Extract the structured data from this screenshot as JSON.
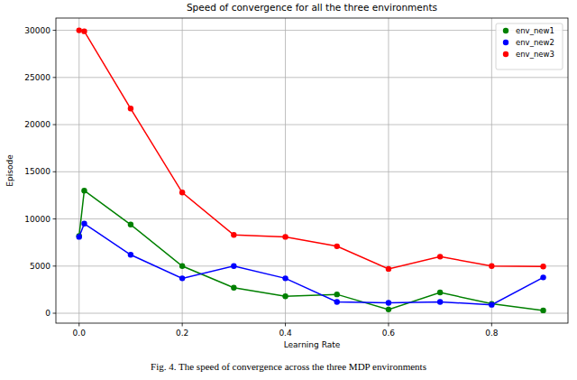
{
  "chart_data": {
    "type": "line",
    "title": "Speed of convergence for all the three environments",
    "x_label": "Learning Rate",
    "y_label": "Episode",
    "caption": "Fig. 4. The speed of convergence across the three MDP environments",
    "x": [
      0,
      0.01,
      0.1,
      0.2,
      0.3,
      0.4,
      0.5,
      0.6,
      0.7,
      0.8,
      0.9
    ],
    "series": [
      {
        "name": "env_new1",
        "color": "#008000",
        "values": [
          8200,
          13000,
          9400,
          5000,
          2700,
          1800,
          2000,
          400,
          2200,
          1000,
          300
        ]
      },
      {
        "name": "env_new2",
        "color": "#0000ff",
        "values": [
          8100,
          9500,
          6200,
          3700,
          5000,
          3700,
          1200,
          1100,
          1200,
          900,
          3800
        ]
      },
      {
        "name": "env_new3",
        "color": "#ff0000",
        "values": [
          30000,
          29900,
          21700,
          12800,
          8300,
          8100,
          7100,
          4700,
          6000,
          5000,
          4950
        ]
      }
    ],
    "xlim": [
      -0.045,
      0.948
    ],
    "ylim": [
      -1050,
      31300
    ],
    "xticks": [
      {
        "value": 0,
        "label": "0.0"
      },
      {
        "value": 0.2,
        "label": "0.2"
      },
      {
        "value": 0.4,
        "label": "0.4"
      },
      {
        "value": 0.6,
        "label": "0.6"
      },
      {
        "value": 0.8,
        "label": "0.8"
      }
    ],
    "yticks": [
      0,
      5000,
      10000,
      15000,
      20000,
      25000,
      30000
    ],
    "grid": true,
    "legend": "upper right",
    "marker": "o"
  }
}
